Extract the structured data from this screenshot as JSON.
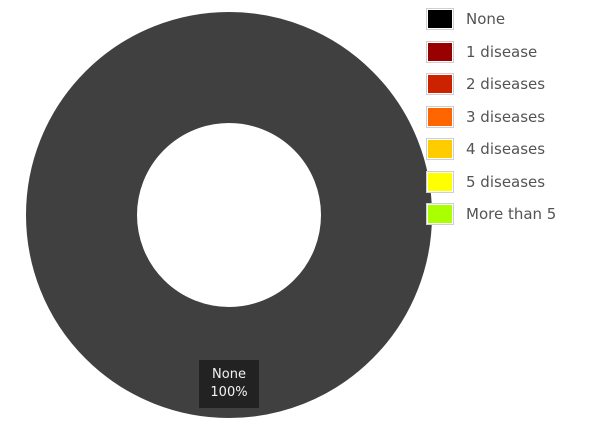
{
  "chart_data": {
    "type": "pie",
    "categories": [
      "None",
      "1 disease",
      "2 diseases",
      "3 diseases",
      "4 diseases",
      "5 diseases",
      "More than 5"
    ],
    "values": [
      100,
      0,
      0,
      0,
      0,
      0,
      0
    ],
    "legend": {
      "items": [
        {
          "label": "None",
          "color": "#000000"
        },
        {
          "label": "1 disease",
          "color": "#990000"
        },
        {
          "label": "2 diseases",
          "color": "#cc2200"
        },
        {
          "label": "3 diseases",
          "color": "#ff6600"
        },
        {
          "label": "4 diseases",
          "color": "#ffcc00"
        },
        {
          "label": "5 diseases",
          "color": "#ffff00"
        },
        {
          "label": "More than 5",
          "color": "#aaff00"
        }
      ],
      "placement": "right"
    },
    "tooltip": {
      "label": "None",
      "value": "100%"
    },
    "donut": true,
    "slice_color": "#404040"
  }
}
